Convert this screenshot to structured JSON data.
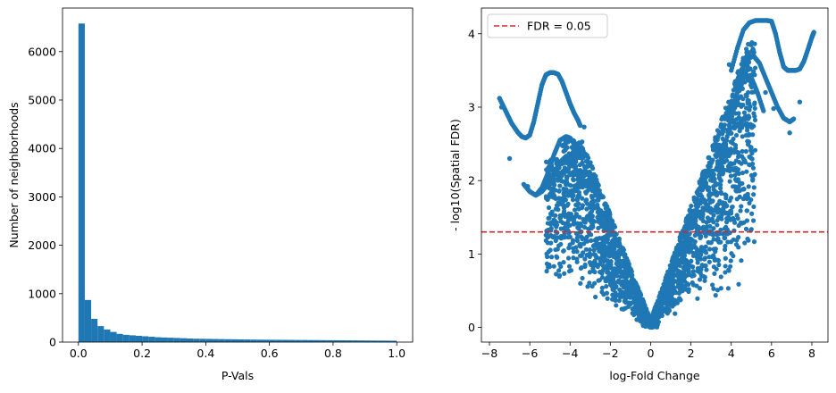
{
  "chart_data": [
    {
      "type": "bar",
      "title": "",
      "xlabel": "P-Vals",
      "ylabel": "Number of neighborhoods",
      "xlim": [
        -0.05,
        1.05
      ],
      "ylim": [
        0,
        6900
      ],
      "xticks": [
        0.0,
        0.2,
        0.4,
        0.6,
        0.8,
        1.0
      ],
      "xtick_labels": [
        "0.0",
        "0.2",
        "0.4",
        "0.6",
        "0.8",
        "1.0"
      ],
      "yticks": [
        0,
        1000,
        2000,
        3000,
        4000,
        5000,
        6000
      ],
      "ytick_labels": [
        "0",
        "1000",
        "2000",
        "3000",
        "4000",
        "5000",
        "6000"
      ],
      "bin_start": 0.0,
      "bin_width": 0.02,
      "values": [
        6580,
        870,
        480,
        330,
        260,
        210,
        170,
        150,
        140,
        130,
        120,
        110,
        100,
        95,
        90,
        85,
        80,
        75,
        70,
        68,
        66,
        64,
        62,
        60,
        58,
        56,
        54,
        52,
        50,
        49,
        48,
        47,
        46,
        45,
        44,
        43,
        42,
        41,
        40,
        39,
        38,
        37,
        36,
        35,
        34,
        33,
        32,
        31,
        30,
        29
      ],
      "color": "#1f77b4",
      "grid": false
    },
    {
      "type": "scatter",
      "title": "",
      "xlabel": "log-Fold Change",
      "ylabel": "- log10(Spatial FDR)",
      "xlim": [
        -8.4,
        8.8
      ],
      "ylim": [
        -0.2,
        4.35
      ],
      "xticks": [
        -8,
        -6,
        -4,
        -2,
        0,
        2,
        4,
        6,
        8
      ],
      "xtick_labels": [
        "−8",
        "−6",
        "−4",
        "−2",
        "0",
        "2",
        "4",
        "6",
        "8"
      ],
      "yticks": [
        0,
        1,
        2,
        3,
        4
      ],
      "ytick_labels": [
        "0",
        "1",
        "2",
        "3",
        "4"
      ],
      "color": "#1f77b4",
      "grid": false,
      "threshold": {
        "y": 1.3,
        "color": "#d62728",
        "label": "FDR = 0.05"
      },
      "legend": "top-left",
      "curves": [
        {
          "x": [
            -7.5,
            -7.2,
            -6.9,
            -6.6,
            -6.4,
            -6.2,
            -6.0,
            -5.8,
            -5.6,
            -5.4,
            -5.2,
            -5.0,
            -4.8,
            -4.6,
            -4.4,
            -4.2,
            -4.0,
            -3.8,
            -3.6,
            -3.5
          ],
          "y": [
            3.12,
            2.95,
            2.78,
            2.66,
            2.6,
            2.58,
            2.62,
            2.8,
            3.05,
            3.3,
            3.44,
            3.47,
            3.47,
            3.45,
            3.35,
            3.2,
            3.05,
            2.92,
            2.82,
            2.75
          ]
        },
        {
          "x": [
            -6.3,
            -6.0,
            -5.7,
            -5.4,
            -5.1,
            -4.8,
            -4.5,
            -4.2,
            -4.0,
            -3.8,
            -3.6,
            -3.4
          ],
          "y": [
            1.95,
            1.85,
            1.8,
            1.9,
            2.1,
            2.35,
            2.55,
            2.6,
            2.58,
            2.5,
            2.4,
            2.3
          ]
        },
        {
          "x": [
            -5.7,
            -5.4,
            -5.1,
            -4.8,
            -4.5,
            -4.2,
            -4.0,
            -3.8,
            -3.6
          ],
          "y": [
            1.8,
            1.85,
            1.95,
            2.1,
            2.25,
            2.33,
            2.3,
            2.2,
            2.1
          ]
        },
        {
          "x": [
            4.0,
            4.3,
            4.6,
            4.9,
            5.2,
            5.5,
            5.8,
            6.0,
            6.2,
            6.4,
            6.6,
            6.8,
            7.0,
            7.2,
            7.4,
            7.6,
            7.8,
            8.0,
            8.1
          ],
          "y": [
            3.5,
            3.8,
            4.05,
            4.15,
            4.18,
            4.18,
            4.18,
            4.17,
            4.0,
            3.75,
            3.55,
            3.5,
            3.5,
            3.5,
            3.52,
            3.62,
            3.78,
            3.95,
            4.02
          ]
        },
        {
          "x": [
            4.2,
            4.5,
            4.8,
            5.1,
            5.4,
            5.7,
            6.0,
            6.3,
            6.6,
            6.9,
            7.1
          ],
          "y": [
            3.3,
            3.5,
            3.65,
            3.7,
            3.6,
            3.4,
            3.2,
            3.0,
            2.85,
            2.8,
            2.84
          ]
        },
        {
          "x": [
            3.5,
            3.8,
            4.1,
            4.4,
            4.7,
            5.0,
            5.3,
            5.6
          ],
          "y": [
            2.2,
            2.6,
            3.0,
            3.3,
            3.45,
            3.4,
            3.2,
            2.95
          ]
        }
      ],
      "outliers": {
        "x": [
          -7.5,
          -7.4,
          -7.0,
          -6.1,
          -3.3,
          3.9,
          5.7,
          6.1,
          7.4,
          6.9
        ],
        "y": [
          3.12,
          3.0,
          2.3,
          1.92,
          2.73,
          3.58,
          3.2,
          2.98,
          3.07,
          2.65
        ]
      }
    }
  ]
}
